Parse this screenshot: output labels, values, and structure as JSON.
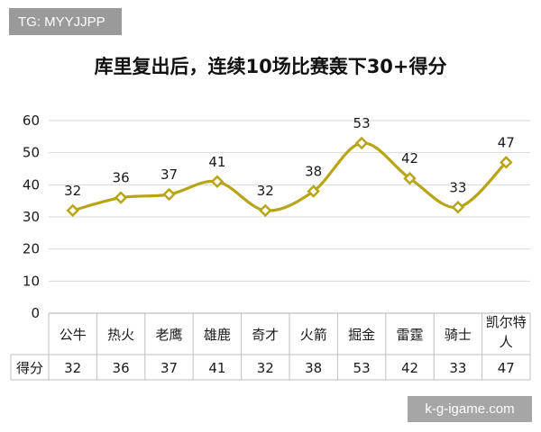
{
  "watermark": {
    "tg_label": "TG: MYYJJPP",
    "site_label": "k-g-igame.com"
  },
  "colors": {
    "line": "#b8a517",
    "marker_fill": "#ffffff",
    "grid": "#d9d9d9",
    "table_border": "#bfbfbf"
  },
  "chart_data": {
    "type": "line",
    "title": "库里复出后，连续10场比赛轰下30+得分",
    "categories": [
      [
        "公牛"
      ],
      [
        "热火"
      ],
      [
        "老鹰"
      ],
      [
        "雄鹿"
      ],
      [
        "奇才"
      ],
      [
        "火箭"
      ],
      [
        "掘金"
      ],
      [
        "雷霆"
      ],
      [
        "骑士"
      ],
      [
        "凯尔特",
        "人"
      ]
    ],
    "series": [
      {
        "name": "得分",
        "values": [
          32,
          36,
          37,
          41,
          32,
          38,
          53,
          42,
          33,
          47
        ]
      }
    ],
    "ylim": [
      0,
      60
    ],
    "yticks": [
      0,
      10,
      20,
      30,
      40,
      50,
      60
    ],
    "grid": true,
    "marker": "diamond",
    "smooth": true,
    "data_table": true
  }
}
